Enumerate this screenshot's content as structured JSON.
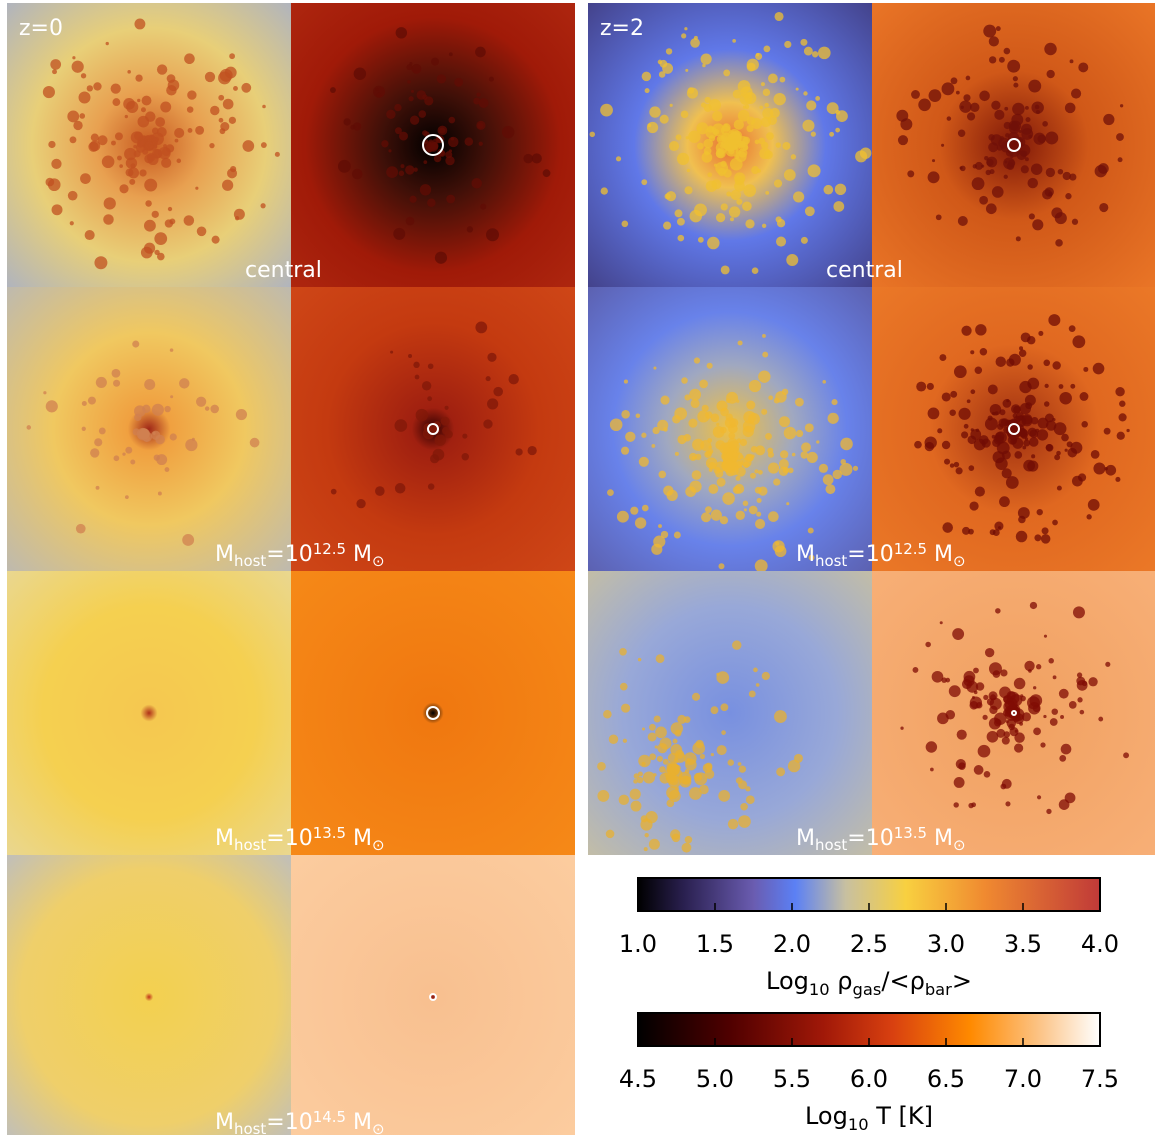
{
  "columns": [
    {
      "redshift": "z=0",
      "panel_labels": [
        [
          {
            "text": "central"
          }
        ],
        [
          {
            "text": "M"
          },
          {
            "sub": "host"
          },
          {
            "text": "=10"
          },
          {
            "sup": "12.5"
          },
          {
            "text": " M"
          },
          {
            "sub": "⊙"
          }
        ],
        [
          {
            "text": "M"
          },
          {
            "sub": "host"
          },
          {
            "text": "=10"
          },
          {
            "sup": "13.5"
          },
          {
            "text": " M"
          },
          {
            "sub": "⊙"
          }
        ],
        [
          {
            "text": "M"
          },
          {
            "sub": "host"
          },
          {
            "text": "=10"
          },
          {
            "sup": "14.5"
          },
          {
            "text": " M"
          },
          {
            "sub": "⊙"
          }
        ]
      ]
    },
    {
      "redshift": "z=2",
      "panel_labels": [
        [
          {
            "text": "central"
          }
        ],
        [
          {
            "text": "M"
          },
          {
            "sub": "host"
          },
          {
            "text": "=10"
          },
          {
            "sup": "12.5"
          },
          {
            "text": " M"
          },
          {
            "sub": "⊙"
          }
        ],
        [
          {
            "text": "M"
          },
          {
            "sub": "host"
          },
          {
            "text": "=10"
          },
          {
            "sup": "13.5"
          },
          {
            "text": " M"
          },
          {
            "sub": "⊙"
          }
        ]
      ]
    }
  ],
  "colorbars": [
    {
      "lim": [
        1.0,
        4.0
      ],
      "ticks": [
        {
          "value": 1.0,
          "label": "1.0"
        },
        {
          "value": 1.5,
          "label": "1.5"
        },
        {
          "value": 2.0,
          "label": "2.0"
        },
        {
          "value": 2.5,
          "label": "2.5"
        },
        {
          "value": 3.0,
          "label": "3.0"
        },
        {
          "value": 3.5,
          "label": "3.5"
        },
        {
          "value": 4.0,
          "label": "4.0"
        }
      ],
      "label": [
        {
          "text": "Log"
        },
        {
          "sub": "10"
        },
        {
          "text": " ρ"
        },
        {
          "sub": "gas"
        },
        {
          "text": "/<ρ"
        },
        {
          "sub": "bar"
        },
        {
          "text": ">"
        }
      ]
    },
    {
      "lim": [
        4.5,
        7.5
      ],
      "ticks": [
        {
          "value": 4.5,
          "label": "4.5"
        },
        {
          "value": 5.0,
          "label": "5.0"
        },
        {
          "value": 5.5,
          "label": "5.5"
        },
        {
          "value": 6.0,
          "label": "6.0"
        },
        {
          "value": 6.5,
          "label": "6.5"
        },
        {
          "value": 7.0,
          "label": "7.0"
        },
        {
          "value": 7.5,
          "label": "7.5"
        }
      ],
      "label": [
        {
          "text": "Log"
        },
        {
          "sub": "10"
        },
        {
          "text": " T [K]"
        }
      ]
    }
  ]
}
